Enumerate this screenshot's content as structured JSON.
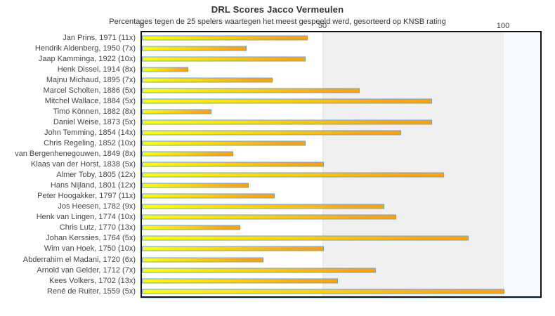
{
  "header": {
    "title": "DRL Scores Jacco Vermeulen",
    "subtitle": "Percentages tegen de 25 spelers waartegen het meest gespeeld werd, gesorteerd op KNSB rating"
  },
  "chart_data": {
    "type": "bar",
    "orientation": "horizontal",
    "title": "DRL Scores Jacco Vermeulen",
    "subtitle": "Percentages tegen de 25 spelers waartegen het meest gespeeld werd, gesorteerd op KNSB rating",
    "xlabel": "",
    "ylabel": "",
    "xlim": [
      0,
      110
    ],
    "x_ticks": [
      "0",
      "50",
      "100"
    ],
    "legend": "none",
    "grid": "background zone shading: white 0-50, light gray 50-100, pale blue beyond 100",
    "categories": [
      "Jan Prins, 1971 (11x)",
      "Hendrik Aldenberg, 1950 (7x)",
      "Jaap Kamminga, 1922 (10x)",
      "Henk Dissel, 1914 (8x)",
      "Majnu Michaud, 1895 (7x)",
      "Marcel Scholten, 1886 (5x)",
      "Mitchel Wallace, 1884 (5x)",
      "Timo Können, 1882 (8x)",
      "Daniel Weise, 1873 (5x)",
      "John Temming, 1854 (14x)",
      "Chris Regeling, 1852 (10x)",
      "van Bergenhenegouwen, 1849 (8x)",
      "Klaas van der Horst, 1838 (5x)",
      "Almer Toby, 1805 (12x)",
      "Hans Nijland, 1801 (12x)",
      "Peter Hoogakker, 1797 (11x)",
      "Jos Heesen, 1782 (9x)",
      "Henk van Lingen, 1774 (10x)",
      "Chris Lutz, 1770 (13x)",
      "Johan Kerssies, 1764 (5x)",
      "Wim van Hoek, 1750 (10x)",
      "Abderrahim el Madani, 1720 (6x)",
      "Arnold van Gelder, 1712 (7x)",
      "Kees Volkers, 1702 (13x)",
      "René de Ruiter, 1559 (5x)"
    ],
    "values": [
      45.5,
      28.6,
      45,
      12.5,
      35.7,
      60,
      80,
      18.8,
      80,
      71.4,
      45,
      25,
      50,
      83.3,
      29.2,
      36.4,
      66.7,
      70,
      26.9,
      90,
      50,
      33.3,
      64.3,
      53.8,
      100
    ],
    "colors": {
      "bar_gradient_start": "#fdff00",
      "bar_gradient_end": "#ffa203",
      "bar_border": "#6ba3d9",
      "zone_50_100": "#f0f0f1",
      "zone_over_100": "#f6f9fd",
      "frame": "#111111",
      "text": "#454545"
    }
  }
}
